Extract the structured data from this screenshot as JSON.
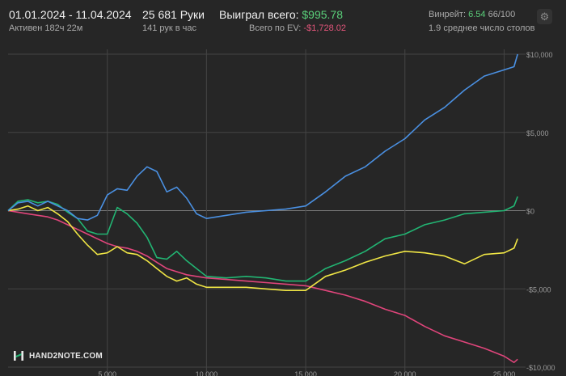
{
  "header": {
    "date_range": "01.01.2024 - 11.04.2024",
    "active_time": "Активен 182ч 22м",
    "hands": "25 681 Руки",
    "hands_per_hour": "141 рук в час",
    "won_label": "Выиграл всего:",
    "won_value": "$995.78",
    "ev_label": "Всего по EV:",
    "ev_value": "-$1,728.02",
    "winrate_label": "Винрейт:",
    "winrate_value": "6.54",
    "winrate_suffix": "66/100",
    "tables": "1.9 среднее число столов"
  },
  "logo": {
    "text": "HAND2NOTE.COM",
    "icon": "hand2note-logo-icon"
  },
  "settings_icon": "gear-icon",
  "colors": {
    "blue": "#4a90e2",
    "green": "#22b573",
    "yellow": "#f0e645",
    "pink": "#e0457b",
    "grid": "#444444",
    "zero": "#7a7a7a"
  },
  "chart_data": {
    "type": "line",
    "title": "",
    "xlabel": "",
    "ylabel": "",
    "xlim": [
      0,
      26000
    ],
    "ylim": [
      -10000,
      10000
    ],
    "x_ticks": [
      5000,
      10000,
      15000,
      20000,
      25000
    ],
    "x_tick_labels": [
      "5,000",
      "10,000",
      "15,000",
      "20,000",
      "25,000"
    ],
    "y_ticks": [
      10000,
      5000,
      0,
      -5000,
      -10000
    ],
    "y_tick_labels": [
      "$10,000",
      "$5,000",
      "$0",
      "-$5,000",
      "-$10,000"
    ],
    "grid": true,
    "series": [
      {
        "color_key": "blue",
        "x": [
          0,
          500,
          1000,
          1500,
          2000,
          2500,
          3000,
          3500,
          4000,
          4500,
          5000,
          5500,
          6000,
          6500,
          7000,
          7500,
          8000,
          8500,
          9000,
          9500,
          10000,
          11000,
          12000,
          13000,
          14000,
          15000,
          16000,
          17000,
          18000,
          19000,
          20000,
          21000,
          22000,
          23000,
          24000,
          25000,
          25500,
          25681
        ],
        "y": [
          0,
          500,
          600,
          300,
          600,
          300,
          0,
          -500,
          -600,
          -300,
          1000,
          1400,
          1300,
          2200,
          2800,
          2500,
          1200,
          1500,
          800,
          -200,
          -500,
          -300,
          -100,
          0,
          100,
          300,
          1200,
          2200,
          2800,
          3800,
          4600,
          5800,
          6600,
          7700,
          8600,
          9000,
          9200,
          10000
        ]
      },
      {
        "color_key": "green",
        "x": [
          0,
          500,
          1000,
          1500,
          2000,
          2500,
          3000,
          3500,
          4000,
          4500,
          5000,
          5500,
          6000,
          6500,
          7000,
          7500,
          8000,
          8500,
          9000,
          9500,
          10000,
          11000,
          12000,
          13000,
          14000,
          15000,
          16000,
          17000,
          18000,
          19000,
          20000,
          21000,
          22000,
          23000,
          24000,
          25000,
          25500,
          25681
        ],
        "y": [
          0,
          600,
          700,
          500,
          600,
          400,
          -100,
          -500,
          -1300,
          -1500,
          -1500,
          200,
          -200,
          -800,
          -1700,
          -3000,
          -3100,
          -2600,
          -3200,
          -3700,
          -4200,
          -4300,
          -4200,
          -4300,
          -4500,
          -4500,
          -3700,
          -3200,
          -2600,
          -1800,
          -1500,
          -900,
          -600,
          -200,
          -100,
          0,
          300,
          900
        ]
      },
      {
        "color_key": "yellow",
        "x": [
          0,
          500,
          1000,
          1500,
          2000,
          2500,
          3000,
          3500,
          4000,
          4500,
          5000,
          5500,
          6000,
          6500,
          7000,
          7500,
          8000,
          8500,
          9000,
          9500,
          10000,
          11000,
          12000,
          13000,
          14000,
          15000,
          16000,
          17000,
          18000,
          19000,
          20000,
          21000,
          22000,
          23000,
          24000,
          25000,
          25500,
          25681
        ],
        "y": [
          0,
          100,
          300,
          0,
          200,
          -200,
          -700,
          -1500,
          -2200,
          -2800,
          -2700,
          -2300,
          -2700,
          -2800,
          -3200,
          -3700,
          -4200,
          -4500,
          -4300,
          -4700,
          -4900,
          -4900,
          -4900,
          -5000,
          -5100,
          -5100,
          -4200,
          -3800,
          -3300,
          -2900,
          -2600,
          -2700,
          -2900,
          -3400,
          -2800,
          -2700,
          -2400,
          -1800
        ]
      },
      {
        "color_key": "pink",
        "x": [
          0,
          500,
          1000,
          1500,
          2000,
          2500,
          3000,
          3500,
          4000,
          4500,
          5000,
          5500,
          6000,
          6500,
          7000,
          7500,
          8000,
          8500,
          9000,
          9500,
          10000,
          11000,
          12000,
          13000,
          14000,
          15000,
          16000,
          17000,
          18000,
          19000,
          20000,
          21000,
          22000,
          23000,
          24000,
          25000,
          25500,
          25681
        ],
        "y": [
          0,
          -100,
          -200,
          -300,
          -400,
          -600,
          -900,
          -1200,
          -1500,
          -1800,
          -2100,
          -2300,
          -2400,
          -2600,
          -2900,
          -3300,
          -3700,
          -3900,
          -4100,
          -4200,
          -4300,
          -4400,
          -4500,
          -4600,
          -4700,
          -4800,
          -5100,
          -5400,
          -5800,
          -6300,
          -6700,
          -7400,
          -8000,
          -8400,
          -8800,
          -9300,
          -9700,
          -9500
        ]
      }
    ]
  }
}
